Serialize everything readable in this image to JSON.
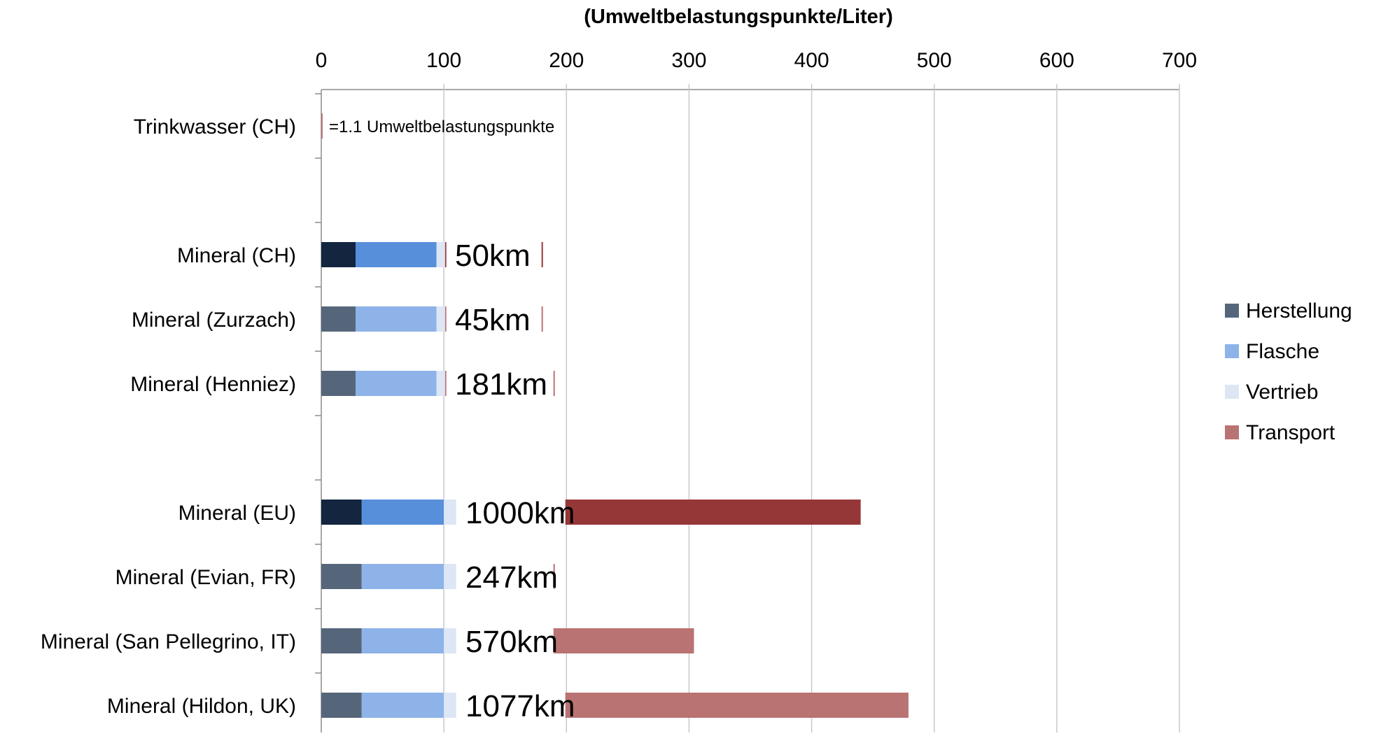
{
  "chart_data": {
    "type": "bar",
    "stacked": true,
    "orientation": "horizontal",
    "title": "(Umweltbelastungspunkte/Liter)",
    "xlabel": "(Umweltbelastungspunkte/Liter)",
    "ylabel": "",
    "xlim": [
      0,
      700
    ],
    "x_ticks": [
      "0",
      "100",
      "200",
      "300",
      "400",
      "500",
      "600",
      "700"
    ],
    "axis_position": "top",
    "grid": true,
    "legend_position": "right",
    "categories": [
      "Trinkwasser (CH)",
      "Mineral (CH)",
      "Mineral (Zurzach)",
      "Mineral (Henniez)",
      "Mineral (EU)",
      "Mineral (Evian, FR)",
      "Mineral (San Pellegrino, IT)",
      "Mineral (Hildon, UK)"
    ],
    "group_breaks_after": [
      0,
      3
    ],
    "series": [
      {
        "name": "Herstellung",
        "values": [
          0,
          28,
          28,
          28,
          33,
          33,
          33,
          33
        ]
      },
      {
        "name": "Flasche",
        "values": [
          0,
          66,
          66,
          66,
          67,
          67,
          67,
          67
        ]
      },
      {
        "name": "Vertrieb",
        "values": [
          0,
          7,
          7,
          7,
          10,
          10,
          10,
          10
        ]
      },
      {
        "name": "Transport",
        "values": [
          1.1,
          2,
          4,
          52,
          330,
          77,
          194,
          369
        ]
      }
    ],
    "colors": {
      "Herstellung": "#56667a",
      "Flasche": "#8db3e8",
      "Vertrieb": "#dce6f5",
      "Transport": "#b97372",
      "Herstellung_highlight": "#13253f",
      "Flasche_highlight": "#578fdb",
      "Transport_highlight": "#963737"
    },
    "highlighted_categories": [
      "Mineral (CH)",
      "Mineral (EU)"
    ],
    "distance_labels": [
      "",
      "50km",
      "45km",
      "181km",
      "1000km",
      "247km",
      "570km",
      "1077km"
    ],
    "annotations": [
      "=1.1 Umweltbelastungspunkte"
    ]
  }
}
